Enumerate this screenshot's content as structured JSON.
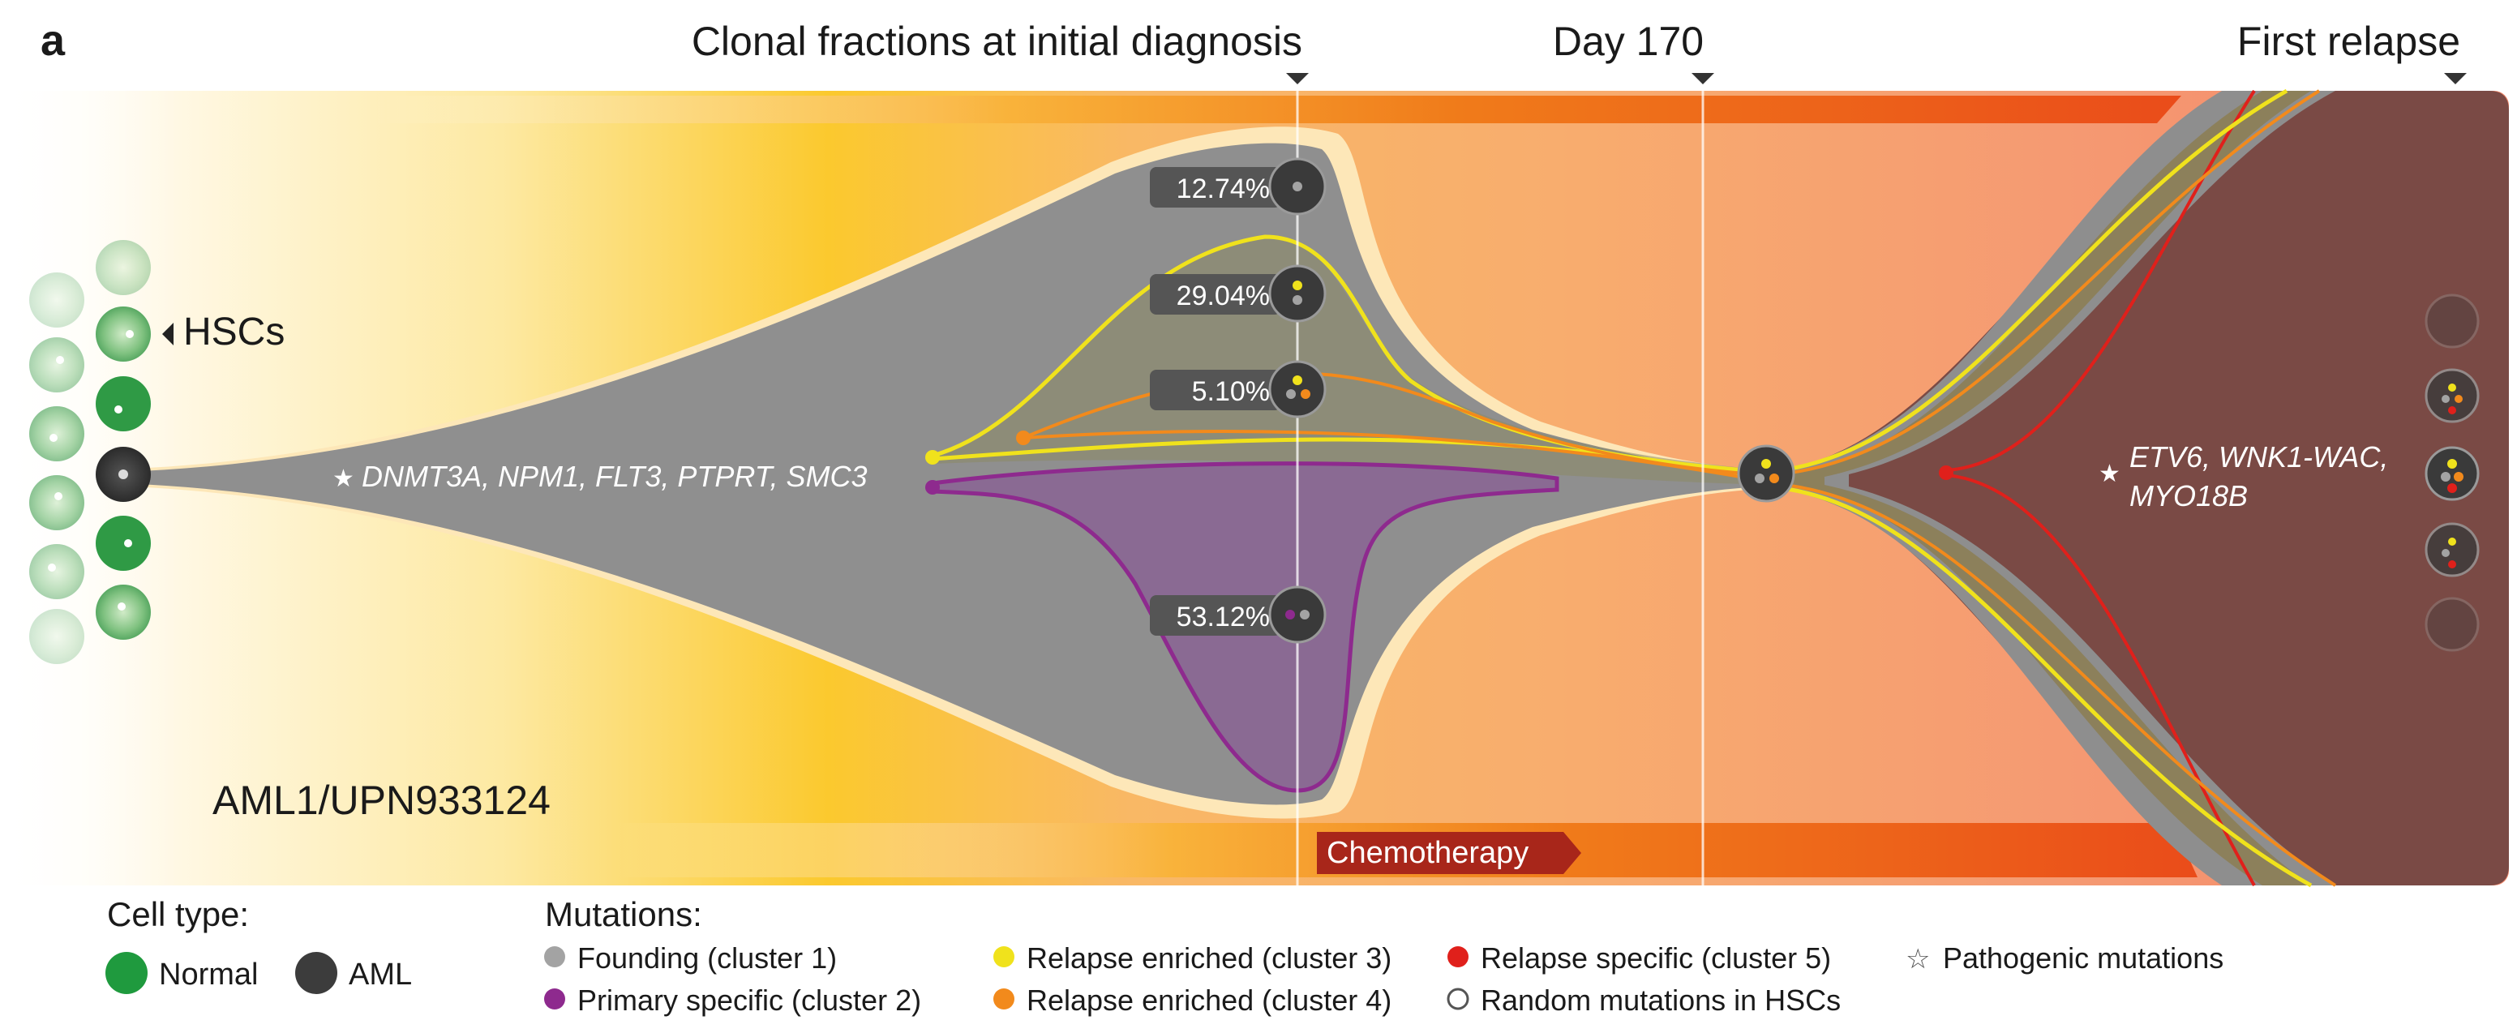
{
  "panel_label": "a",
  "timepoints": [
    {
      "label": "Clonal fractions at initial diagnosis"
    },
    {
      "label": "Day 170"
    },
    {
      "label": "First relapse"
    }
  ],
  "hsc_label": "HSCs",
  "sample_id": "AML1/UPN933124",
  "founding_mutations": "DNMT3A, NPM1, FLT3, PTPRT, SMC3",
  "relapse_mutations_line1": "ETV6, WNK1-WAC,",
  "relapse_mutations_line2": "MYO18B",
  "star_symbol": "★",
  "therapy_label": "Chemotherapy",
  "clone_fractions": [
    {
      "cluster": "Founding (cluster 1)",
      "value": "12.74%"
    },
    {
      "cluster": "Relapse enriched (cluster 3)",
      "value": "29.04%"
    },
    {
      "cluster": "Relapse enriched (cluster 4)",
      "value": "5.10%"
    },
    {
      "cluster": "Primary specific (cluster 2)",
      "value": "53.12%"
    }
  ],
  "legend": {
    "cell_type_title": "Cell type:",
    "normal_label": "Normal",
    "aml_label": "AML",
    "mutations_title": "Mutations:",
    "items": [
      {
        "label": "Founding (cluster 1)",
        "color": "#a3a3a3"
      },
      {
        "label": "Primary specific (cluster 2)",
        "color": "#8e2a8e"
      },
      {
        "label": "Relapse enriched (cluster 3)",
        "color": "#f0e21c"
      },
      {
        "label": "Relapse enriched (cluster 4)",
        "color": "#f28a1c"
      },
      {
        "label": "Relapse specific (cluster 5)",
        "color": "#e0201b"
      },
      {
        "label": "Random mutations in HSCs",
        "color": "#ffffff"
      },
      {
        "label": "Pathogenic mutations",
        "color": "#ffffff"
      }
    ]
  },
  "colors": {
    "normal": "#1f9a3e",
    "aml": "#3c3c3c",
    "founding_band": "#8f8f8f",
    "primary_specific": "#8e2a8e",
    "relapse_cluster3": "#f0e21c",
    "relapse_cluster4": "#f28a1c",
    "relapse_cluster5": "#e0201b",
    "relapse_fill": "#7a4a45",
    "chemotherapy": "#a8261a"
  }
}
